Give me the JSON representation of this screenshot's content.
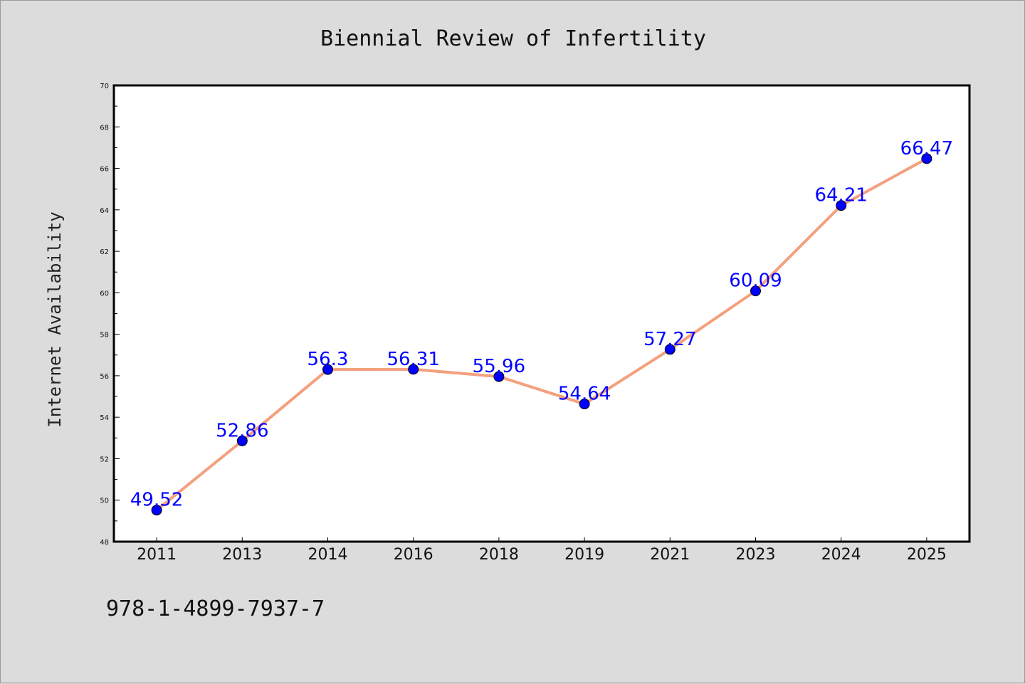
{
  "chart_data": {
    "type": "line",
    "title": "Biennial Review of Infertility",
    "ylabel": "Internet Availability",
    "xlabel": "",
    "categories": [
      "2011",
      "2013",
      "2014",
      "2016",
      "2018",
      "2019",
      "2021",
      "2023",
      "2024",
      "2025"
    ],
    "values": [
      49.52,
      52.86,
      56.3,
      56.31,
      55.96,
      54.64,
      57.27,
      60.09,
      64.21,
      66.47
    ],
    "data_labels": [
      "49.52",
      "52.86",
      "56.3",
      "56.31",
      "55.96",
      "54.64",
      "57.27",
      "60.09",
      "64.21",
      "66.47"
    ],
    "ylim": [
      48,
      70
    ],
    "yticks": [
      "48",
      "50",
      "52",
      "54",
      "56",
      "58",
      "60",
      "62",
      "64",
      "66",
      "68",
      "70"
    ],
    "grid": false,
    "colors": {
      "line": "#f4a07e",
      "marker": "#0000ff",
      "data_label": "#0000ff",
      "plot_background": "#ffffff",
      "page_background": "#dcdcdc"
    }
  },
  "footer": {
    "isbn": "978-1-4899-7937-7"
  }
}
